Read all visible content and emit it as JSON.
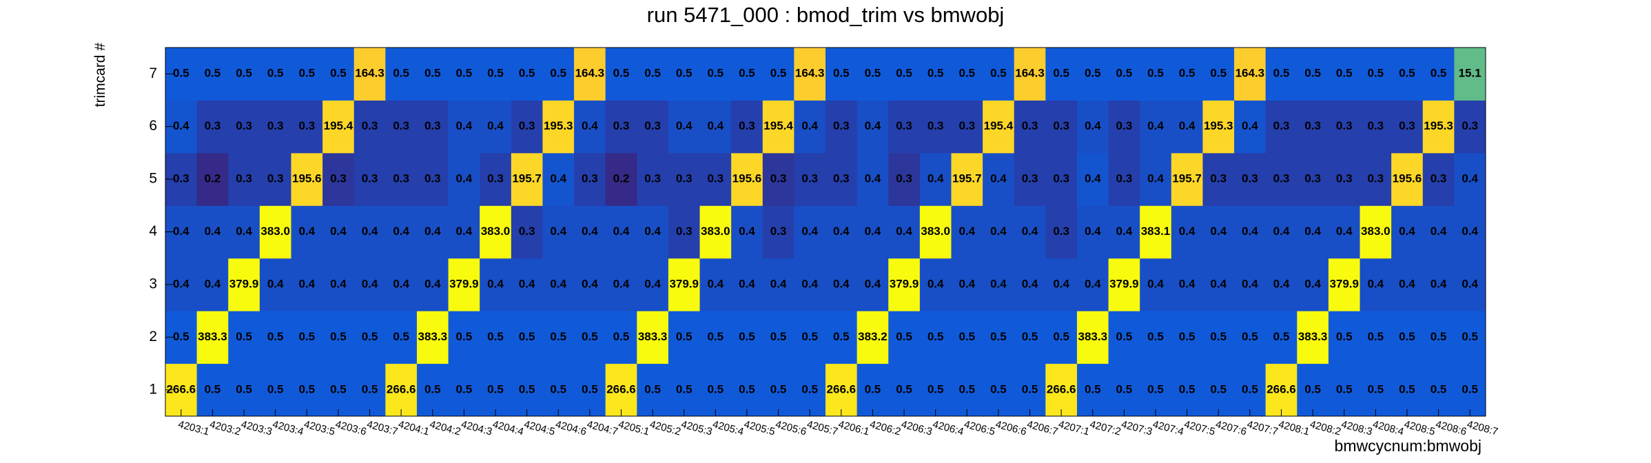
{
  "chart_data": {
    "type": "heatmap",
    "title": "run 5471_000 : bmod_trim vs bmwobj",
    "x_label": "bmwcycnum:bmwobj",
    "y_label": "trimcard #",
    "log_z": true,
    "colorscale": [
      "#352a87",
      "#0f5cdd",
      "#1481d6",
      "#06a4ca",
      "#2eb7a4",
      "#87bf77",
      "#d1bb59",
      "#fec832",
      "#f9fb0e"
    ],
    "x": [
      "4203:1",
      "4203:2",
      "4203:3",
      "4203:4",
      "4203:5",
      "4203:6",
      "4203:7",
      "4204:1",
      "4204:2",
      "4204:3",
      "4204:4",
      "4204:5",
      "4204:6",
      "4204:7",
      "4205:1",
      "4205:2",
      "4205:3",
      "4205:4",
      "4205:5",
      "4205:6",
      "4205:7",
      "4206:1",
      "4206:2",
      "4206:3",
      "4206:4",
      "4206:5",
      "4206:6",
      "4206:7",
      "4207:1",
      "4207:2",
      "4207:3",
      "4207:4",
      "4207:5",
      "4207:6",
      "4207:7",
      "4208:1",
      "4208:2",
      "4208:3",
      "4208:4",
      "4208:5",
      "4208:6",
      "4208:7"
    ],
    "y": [
      "1",
      "2",
      "3",
      "4",
      "5",
      "6",
      "7"
    ],
    "values": [
      [
        266.6,
        0.5,
        0.5,
        0.5,
        0.5,
        0.5,
        0.5,
        266.6,
        0.5,
        0.5,
        0.5,
        0.5,
        0.5,
        0.5,
        266.6,
        0.5,
        0.5,
        0.5,
        0.5,
        0.5,
        0.5,
        266.6,
        0.5,
        0.5,
        0.5,
        0.5,
        0.5,
        0.5,
        266.6,
        0.5,
        0.5,
        0.5,
        0.5,
        0.5,
        0.5,
        266.6,
        0.5,
        0.5,
        0.5,
        0.5,
        0.5,
        0.5
      ],
      [
        0.5,
        383.3,
        0.5,
        0.5,
        0.5,
        0.5,
        0.5,
        0.5,
        383.3,
        0.5,
        0.5,
        0.5,
        0.5,
        0.5,
        0.5,
        383.3,
        0.5,
        0.5,
        0.5,
        0.5,
        0.5,
        0.5,
        383.2,
        0.5,
        0.5,
        0.5,
        0.5,
        0.5,
        0.5,
        383.3,
        0.5,
        0.5,
        0.5,
        0.5,
        0.5,
        0.5,
        383.3,
        0.5,
        0.5,
        0.5,
        0.5,
        0.5
      ],
      [
        0.4,
        0.4,
        379.9,
        0.4,
        0.4,
        0.4,
        0.4,
        0.4,
        0.4,
        379.9,
        0.4,
        0.4,
        0.4,
        0.4,
        0.4,
        0.4,
        379.9,
        0.4,
        0.4,
        0.4,
        0.4,
        0.4,
        0.4,
        379.9,
        0.4,
        0.4,
        0.4,
        0.4,
        0.4,
        0.4,
        379.9,
        0.4,
        0.4,
        0.4,
        0.4,
        0.4,
        0.4,
        379.9,
        0.4,
        0.4,
        0.4,
        0.4
      ],
      [
        0.4,
        0.4,
        0.4,
        383.0,
        0.4,
        0.4,
        0.4,
        0.4,
        0.4,
        0.4,
        383.0,
        0.3,
        0.4,
        0.4,
        0.4,
        0.4,
        0.3,
        383.0,
        0.4,
        0.3,
        0.4,
        0.4,
        0.4,
        0.4,
        383.0,
        0.4,
        0.4,
        0.4,
        0.3,
        0.4,
        0.4,
        383.1,
        0.4,
        0.4,
        0.4,
        0.4,
        0.4,
        0.4,
        383.0,
        0.4,
        0.4,
        0.4
      ],
      [
        0.3,
        0.2,
        0.3,
        0.3,
        195.6,
        0.25,
        0.3,
        0.3,
        0.3,
        0.4,
        0.3,
        195.7,
        0.44,
        0.3,
        0.2,
        0.3,
        0.3,
        0.3,
        195.6,
        0.25,
        0.3,
        0.3,
        0.4,
        0.25,
        0.4,
        195.7,
        0.4,
        0.3,
        0.3,
        0.44,
        0.3,
        0.4,
        195.7,
        0.3,
        0.3,
        0.3,
        0.3,
        0.3,
        0.3,
        195.6,
        0.3,
        0.4
      ],
      [
        0.44,
        0.3,
        0.3,
        0.3,
        0.3,
        195.4,
        0.3,
        0.3,
        0.3,
        0.4,
        0.4,
        0.3,
        195.3,
        0.4,
        0.3,
        0.3,
        0.4,
        0.4,
        0.3,
        195.4,
        0.4,
        0.3,
        0.4,
        0.3,
        0.3,
        0.3,
        195.4,
        0.3,
        0.3,
        0.4,
        0.3,
        0.4,
        0.4,
        195.3,
        0.44,
        0.3,
        0.3,
        0.3,
        0.3,
        0.3,
        195.3,
        0.3
      ],
      [
        0.5,
        0.5,
        0.5,
        0.5,
        0.5,
        0.5,
        164.3,
        0.5,
        0.5,
        0.5,
        0.5,
        0.5,
        0.5,
        164.3,
        0.5,
        0.5,
        0.5,
        0.5,
        0.5,
        0.5,
        164.3,
        0.5,
        0.5,
        0.5,
        0.5,
        0.5,
        0.5,
        164.3,
        0.5,
        0.5,
        0.5,
        0.5,
        0.5,
        0.5,
        164.3,
        0.5,
        0.5,
        0.5,
        0.5,
        0.5,
        0.5,
        15.1
      ]
    ],
    "value_labels": [
      [
        "266.6",
        "0.5",
        "0.5",
        "0.5",
        "0.5",
        "0.5",
        "0.5",
        "266.6",
        "0.5",
        "0.5",
        "0.5",
        "0.5",
        "0.5",
        "0.5",
        "266.6",
        "0.5",
        "0.5",
        "0.5",
        "0.5",
        "0.5",
        "0.5",
        "266.6",
        "0.5",
        "0.5",
        "0.5",
        "0.5",
        "0.5",
        "0.5",
        "266.6",
        "0.5",
        "0.5",
        "0.5",
        "0.5",
        "0.5",
        "0.5",
        "266.6",
        "0.5",
        "0.5",
        "0.5",
        "0.5",
        "0.5",
        "0.5"
      ],
      [
        "0.5",
        "383.3",
        "0.5",
        "0.5",
        "0.5",
        "0.5",
        "0.5",
        "0.5",
        "383.3",
        "0.5",
        "0.5",
        "0.5",
        "0.5",
        "0.5",
        "0.5",
        "383.3",
        "0.5",
        "0.5",
        "0.5",
        "0.5",
        "0.5",
        "0.5",
        "383.2",
        "0.5",
        "0.5",
        "0.5",
        "0.5",
        "0.5",
        "0.5",
        "383.3",
        "0.5",
        "0.5",
        "0.5",
        "0.5",
        "0.5",
        "0.5",
        "383.3",
        "0.5",
        "0.5",
        "0.5",
        "0.5",
        "0.5"
      ],
      [
        "0.4",
        "0.4",
        "379.9",
        "0.4",
        "0.4",
        "0.4",
        "0.4",
        "0.4",
        "0.4",
        "379.9",
        "0.4",
        "0.4",
        "0.4",
        "0.4",
        "0.4",
        "0.4",
        "379.9",
        "0.4",
        "0.4",
        "0.4",
        "0.4",
        "0.4",
        "0.4",
        "379.9",
        "0.4",
        "0.4",
        "0.4",
        "0.4",
        "0.4",
        "0.4",
        "379.9",
        "0.4",
        "0.4",
        "0.4",
        "0.4",
        "0.4",
        "0.4",
        "379.9",
        "0.4",
        "0.4",
        "0.4",
        "0.4"
      ],
      [
        "0.4",
        "0.4",
        "0.4",
        "383.0",
        "0.4",
        "0.4",
        "0.4",
        "0.4",
        "0.4",
        "0.4",
        "383.0",
        "0.3",
        "0.4",
        "0.4",
        "0.4",
        "0.4",
        "0.3",
        "383.0",
        "0.4",
        "0.3",
        "0.4",
        "0.4",
        "0.4",
        "0.4",
        "383.0",
        "0.4",
        "0.4",
        "0.4",
        "0.3",
        "0.4",
        "0.4",
        "383.1",
        "0.4",
        "0.4",
        "0.4",
        "0.4",
        "0.4",
        "0.4",
        "383.0",
        "0.4",
        "0.4",
        "0.4"
      ],
      [
        "0.3",
        "0.2",
        "0.3",
        "0.3",
        "195.6",
        "0.3",
        "0.3",
        "0.3",
        "0.3",
        "0.4",
        "0.3",
        "195.7",
        "0.4",
        "0.3",
        "0.2",
        "0.3",
        "0.3",
        "0.3",
        "195.6",
        "0.3",
        "0.3",
        "0.3",
        "0.4",
        "0.3",
        "0.4",
        "195.7",
        "0.4",
        "0.3",
        "0.3",
        "0.4",
        "0.3",
        "0.4",
        "195.7",
        "0.3",
        "0.3",
        "0.3",
        "0.3",
        "0.3",
        "0.3",
        "195.6",
        "0.3",
        "0.4"
      ],
      [
        "0.4",
        "0.3",
        "0.3",
        "0.3",
        "0.3",
        "195.4",
        "0.3",
        "0.3",
        "0.3",
        "0.4",
        "0.4",
        "0.3",
        "195.3",
        "0.4",
        "0.3",
        "0.3",
        "0.4",
        "0.4",
        "0.3",
        "195.4",
        "0.4",
        "0.3",
        "0.4",
        "0.3",
        "0.3",
        "0.3",
        "195.4",
        "0.3",
        "0.3",
        "0.4",
        "0.3",
        "0.4",
        "0.4",
        "195.3",
        "0.4",
        "0.3",
        "0.3",
        "0.3",
        "0.3",
        "0.3",
        "195.3",
        "0.3"
      ],
      [
        "0.5",
        "0.5",
        "0.5",
        "0.5",
        "0.5",
        "0.5",
        "164.3",
        "0.5",
        "0.5",
        "0.5",
        "0.5",
        "0.5",
        "0.5",
        "164.3",
        "0.5",
        "0.5",
        "0.5",
        "0.5",
        "0.5",
        "0.5",
        "164.3",
        "0.5",
        "0.5",
        "0.5",
        "0.5",
        "0.5",
        "0.5",
        "164.3",
        "0.5",
        "0.5",
        "0.5",
        "0.5",
        "0.5",
        "0.5",
        "164.3",
        "0.5",
        "0.5",
        "0.5",
        "0.5",
        "0.5",
        "0.5",
        "15.1"
      ]
    ]
  }
}
